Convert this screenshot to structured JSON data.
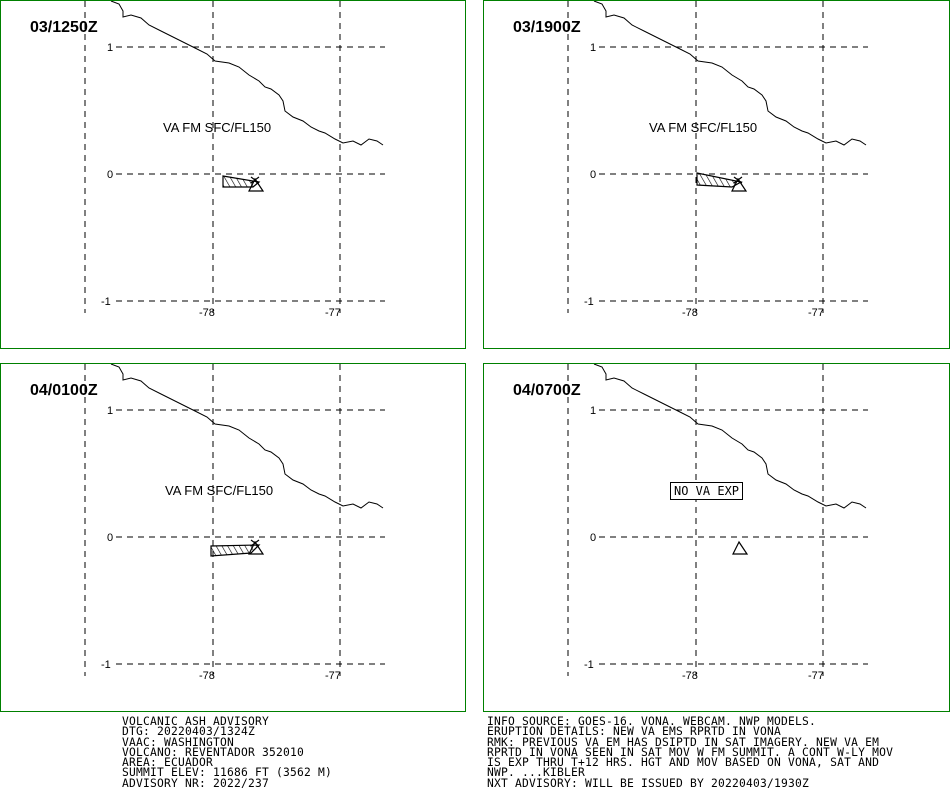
{
  "panels": [
    {
      "time": "03/1250Z",
      "label": "VA FM SFC/FL150",
      "has_ash": true
    },
    {
      "time": "03/1900Z",
      "label": "VA FM SFC/FL150",
      "has_ash": true
    },
    {
      "time": "04/0100Z",
      "label": "VA FM SFC/FL150",
      "has_ash": true
    },
    {
      "time": "04/0700Z",
      "label": "NO VA EXP",
      "has_ash": false
    }
  ],
  "axes": {
    "lat_ticks": [
      "1",
      "0",
      "-1"
    ],
    "lon_ticks": [
      "-78",
      "-77"
    ]
  },
  "advisory_left": [
    "VOLCANIC ASH ADVISORY",
    "DTG: 20220403/1324Z",
    "VAAC: WASHINGTON",
    "VOLCANO: REVENTADOR 352010",
    "AREA: ECUADOR",
    "SUMMIT ELEV: 11686 FT (3562 M)",
    "ADVISORY NR: 2022/237"
  ],
  "advisory_right": [
    "INFO SOURCE: GOES-16. VONA. WEBCAM. NWP MODELS.",
    "ERUPTION DETAILS: NEW VA EMS RPRTD IN VONA",
    "RMK: PREVIOUS VA EM HAS DSIPTD IN SAT IMAGERY. NEW VA EM",
    "RPRTD IN VONA SEEN IN SAT MOV W FM SUMMIT. A CONT W-LY MOV",
    "IS EXP THRU T+12 HRS. HGT AND MOV BASED ON VONA, SAT AND",
    "NWP. ...KIBLER",
    "NXT ADVISORY: WILL BE ISSUED BY 20220403/1930Z"
  ],
  "colors": {
    "panel_border": "#008000",
    "ink": "#000000"
  }
}
